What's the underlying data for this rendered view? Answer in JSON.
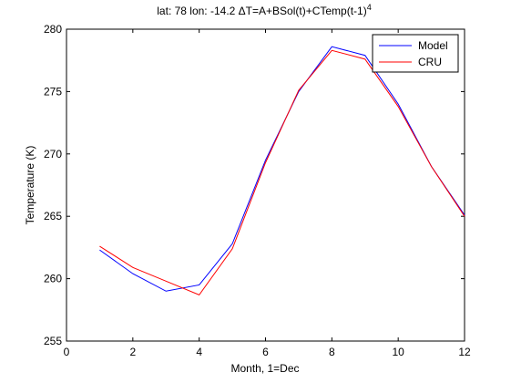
{
  "chart_data": {
    "type": "line",
    "title_main": "lat: 78 lon: -14.2  ΔT=A+BSol(t)+CTemp(t-1)",
    "title_sup": "4",
    "xlabel": "Month, 1=Dec",
    "ylabel": "Temperature (K)",
    "xlim": [
      0,
      12
    ],
    "ylim": [
      255,
      280
    ],
    "xticks": [
      0,
      2,
      4,
      6,
      8,
      10,
      12
    ],
    "yticks": [
      255,
      260,
      265,
      270,
      275,
      280
    ],
    "grid": false,
    "legend_position": "top-right",
    "x": [
      1,
      2,
      3,
      4,
      5,
      6,
      7,
      8,
      9,
      10,
      11,
      12
    ],
    "series": [
      {
        "name": "Model",
        "color": "#0000ff",
        "values": [
          262.3,
          260.4,
          259.0,
          259.5,
          262.8,
          269.5,
          275.0,
          278.6,
          277.9,
          274.0,
          269.0,
          265.1
        ]
      },
      {
        "name": "CRU",
        "color": "#ff0000",
        "values": [
          262.6,
          260.9,
          259.8,
          258.7,
          262.4,
          269.3,
          275.1,
          278.3,
          277.6,
          273.8,
          269.0,
          265.0
        ]
      }
    ]
  }
}
